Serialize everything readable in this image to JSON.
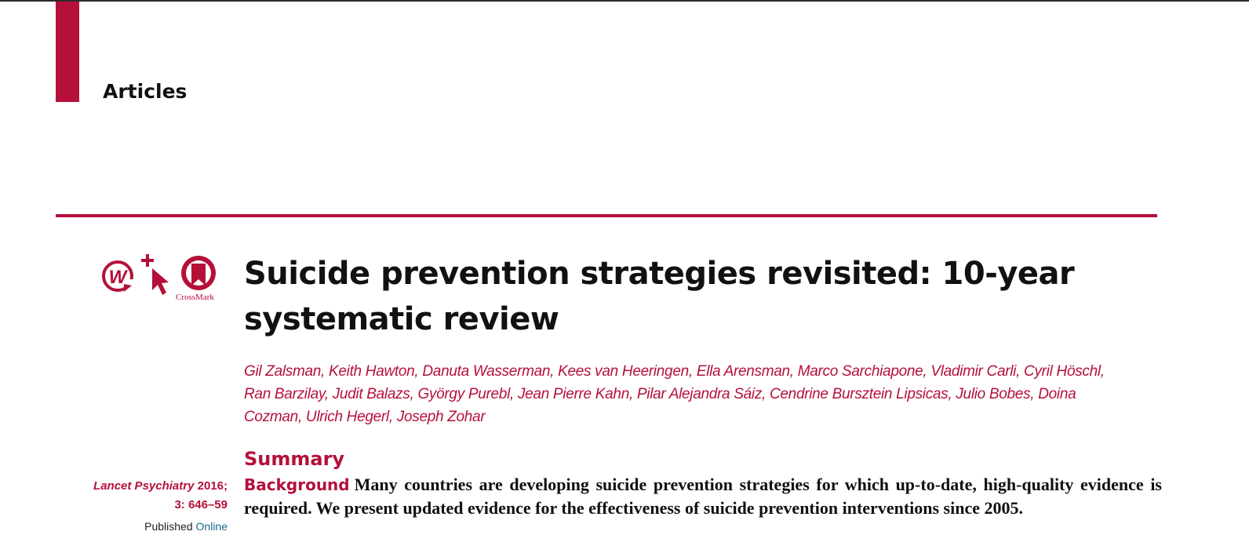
{
  "header": {
    "section_label": "Articles"
  },
  "icons": {
    "items": [
      "web-first-icon",
      "cursor-plus-icon",
      "crossmark-icon"
    ],
    "crossmark_label": "CrossMark"
  },
  "article": {
    "title": "Suicide prevention strategies revisited: 10-year systematic review",
    "authors": "Gil Zalsman, Keith Hawton, Danuta Wasserman, Kees van Heeringen, Ella Arensman, Marco Sarchiapone, Vladimir Carli, Cyril Höschl, Ran Barzilay, Judit Balazs, György Purebl, Jean Pierre Kahn, Pilar Alejandra Sáiz, Cendrine Bursztein Lipsicas, Julio Bobes, Doina Cozman, Ulrich Hegerl, Joseph Zohar"
  },
  "sidebar": {
    "journal": "Lancet Psychiatry",
    "year": " 2016;",
    "volume_pages": "3: 646–59",
    "published_prefix": "Published ",
    "published_link": "Online"
  },
  "summary": {
    "heading": "Summary",
    "background_label": "Background",
    "background_text": "Many countries are developing suicide prevention strategies for which up-to-date, high-quality evidence is required. We present updated evidence for the effectiveness of suicide prevention interventions since 2005."
  },
  "colors": {
    "accent": "#b5103a",
    "text": "#111111",
    "link": "#1a6a8a"
  }
}
